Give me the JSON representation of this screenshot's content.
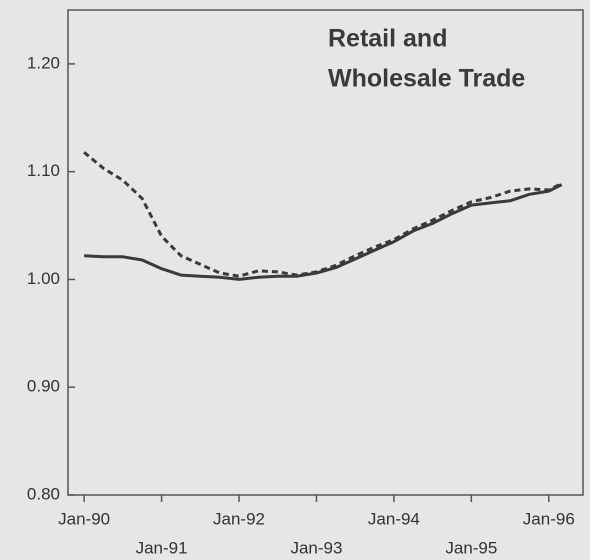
{
  "chart_data": {
    "type": "line",
    "title": [
      "Retail and",
      "Wholesale Trade"
    ],
    "x": [
      0,
      3,
      6,
      9,
      12,
      15,
      18,
      21,
      24,
      27,
      30,
      33,
      36,
      39,
      42,
      45,
      48,
      51,
      54,
      57,
      60,
      63,
      66,
      69,
      72,
      74
    ],
    "series": [
      {
        "color": "#3a3a3a",
        "dash": false,
        "values": [
          1.022,
          1.021,
          1.021,
          1.018,
          1.01,
          1.004,
          1.003,
          1.002,
          1.0,
          1.002,
          1.003,
          1.003,
          1.006,
          1.011,
          1.019,
          1.027,
          1.035,
          1.045,
          1.052,
          1.061,
          1.069,
          1.071,
          1.073,
          1.079,
          1.082,
          1.088
        ]
      },
      {
        "color": "#3a3a3a",
        "dash": true,
        "values": [
          1.118,
          1.103,
          1.092,
          1.075,
          1.04,
          1.022,
          1.014,
          1.006,
          1.003,
          1.008,
          1.007,
          1.004,
          1.007,
          1.013,
          1.022,
          1.03,
          1.037,
          1.047,
          1.055,
          1.064,
          1.072,
          1.076,
          1.082,
          1.084,
          1.083,
          1.089
        ]
      }
    ],
    "xlim": [
      -2.5,
      77.3
    ],
    "xticks": [
      {
        "value": 0,
        "label": "Jan-90"
      },
      {
        "value": 12,
        "label": "Jan-91"
      },
      {
        "value": 24,
        "label": "Jan-92"
      },
      {
        "value": 36,
        "label": "Jan-93"
      },
      {
        "value": 48,
        "label": "Jan-94"
      },
      {
        "value": 60,
        "label": "Jan-95"
      },
      {
        "value": 72,
        "label": "Jan-96"
      }
    ],
    "ylim": [
      0.8,
      1.25
    ],
    "yticks": [
      {
        "value": 0.8,
        "label": "0.80"
      },
      {
        "value": 0.9,
        "label": "0.90"
      },
      {
        "value": 1.0,
        "label": "1.00"
      },
      {
        "value": 1.1,
        "label": "1.10"
      },
      {
        "value": 1.2,
        "label": "1.20"
      }
    ]
  }
}
